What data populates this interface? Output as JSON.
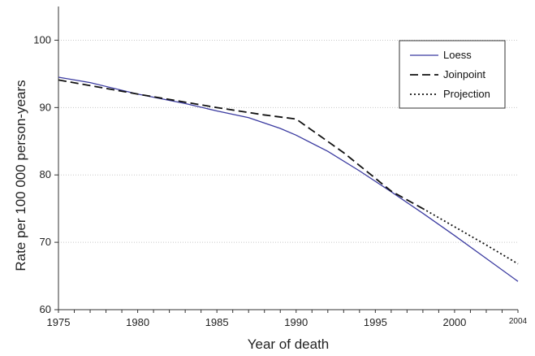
{
  "chart_data": {
    "type": "line",
    "xlabel": "Year of death",
    "ylabel": "Rate per 100 000 person-years",
    "xlim": [
      1975,
      2004
    ],
    "ylim": [
      60,
      105
    ],
    "x_ticks": [
      "1975",
      "1980",
      "1985",
      "1990",
      "1995",
      "2000"
    ],
    "x_tick_extra": "2004",
    "y_ticks": [
      "60",
      "70",
      "80",
      "90",
      "100"
    ],
    "grid": "horizontal dotted",
    "legend_position": "top-right",
    "series": [
      {
        "name": "Loess",
        "style": "solid",
        "color": "#3a3aa0",
        "x": [
          1975,
          1977,
          1980,
          1983,
          1985,
          1987,
          1989,
          1990,
          1992,
          1994,
          1996,
          1998,
          2000,
          2002,
          2004
        ],
        "y": [
          94.5,
          93.7,
          92.0,
          90.6,
          89.5,
          88.5,
          86.9,
          85.9,
          83.5,
          80.6,
          77.5,
          74.3,
          71.0,
          67.6,
          64.2
        ]
      },
      {
        "name": "Joinpoint",
        "style": "dashed",
        "color": "#111111",
        "x": [
          1975,
          1980,
          1985,
          1988,
          1990,
          1993,
          1996,
          1998
        ],
        "y": [
          94.1,
          92.0,
          90.0,
          88.9,
          88.3,
          83.3,
          77.6,
          75.0
        ]
      },
      {
        "name": "Projection",
        "style": "dotted",
        "color": "#111111",
        "x": [
          1998,
          2000,
          2002,
          2004
        ],
        "y": [
          75.0,
          72.3,
          69.6,
          66.8
        ]
      }
    ]
  }
}
